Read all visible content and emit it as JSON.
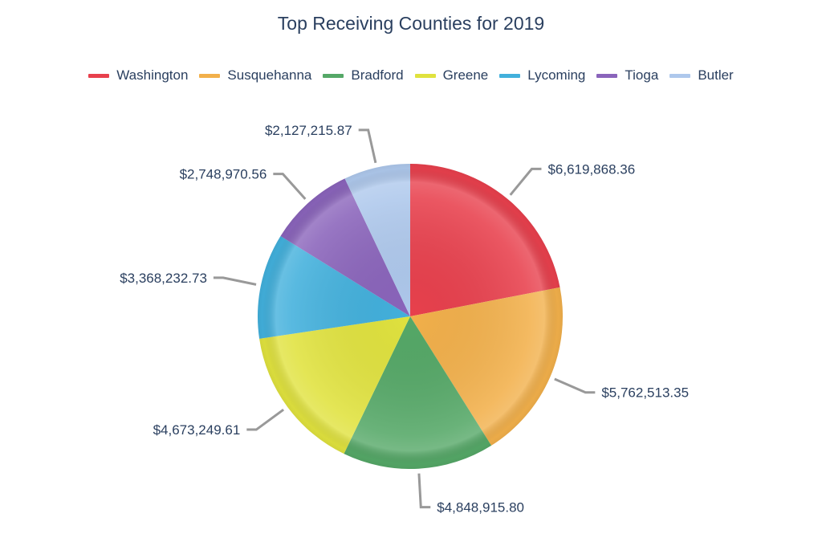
{
  "chart_data": {
    "type": "pie",
    "title": "Top Receiving Counties for 2019",
    "legend_position": "top",
    "categories": [
      "Washington",
      "Susquehanna",
      "Bradford",
      "Greene",
      "Lycoming",
      "Tioga",
      "Butler"
    ],
    "values": [
      6619868.36,
      5762513.35,
      4848915.8,
      4673249.61,
      3368232.73,
      2748970.56,
      2127215.87
    ],
    "data_labels": [
      "$6,619,868.36",
      "$5,762,513.35",
      "$4,848,915.80",
      "$4,673,249.61",
      "$3,368,232.73",
      "$2,748,970.56",
      "$2,127,215.87"
    ],
    "colors": [
      "#e8404d",
      "#f2b04b",
      "#55a867",
      "#e0e23e",
      "#42b0dc",
      "#8a64bb",
      "#aec8ec"
    ]
  }
}
